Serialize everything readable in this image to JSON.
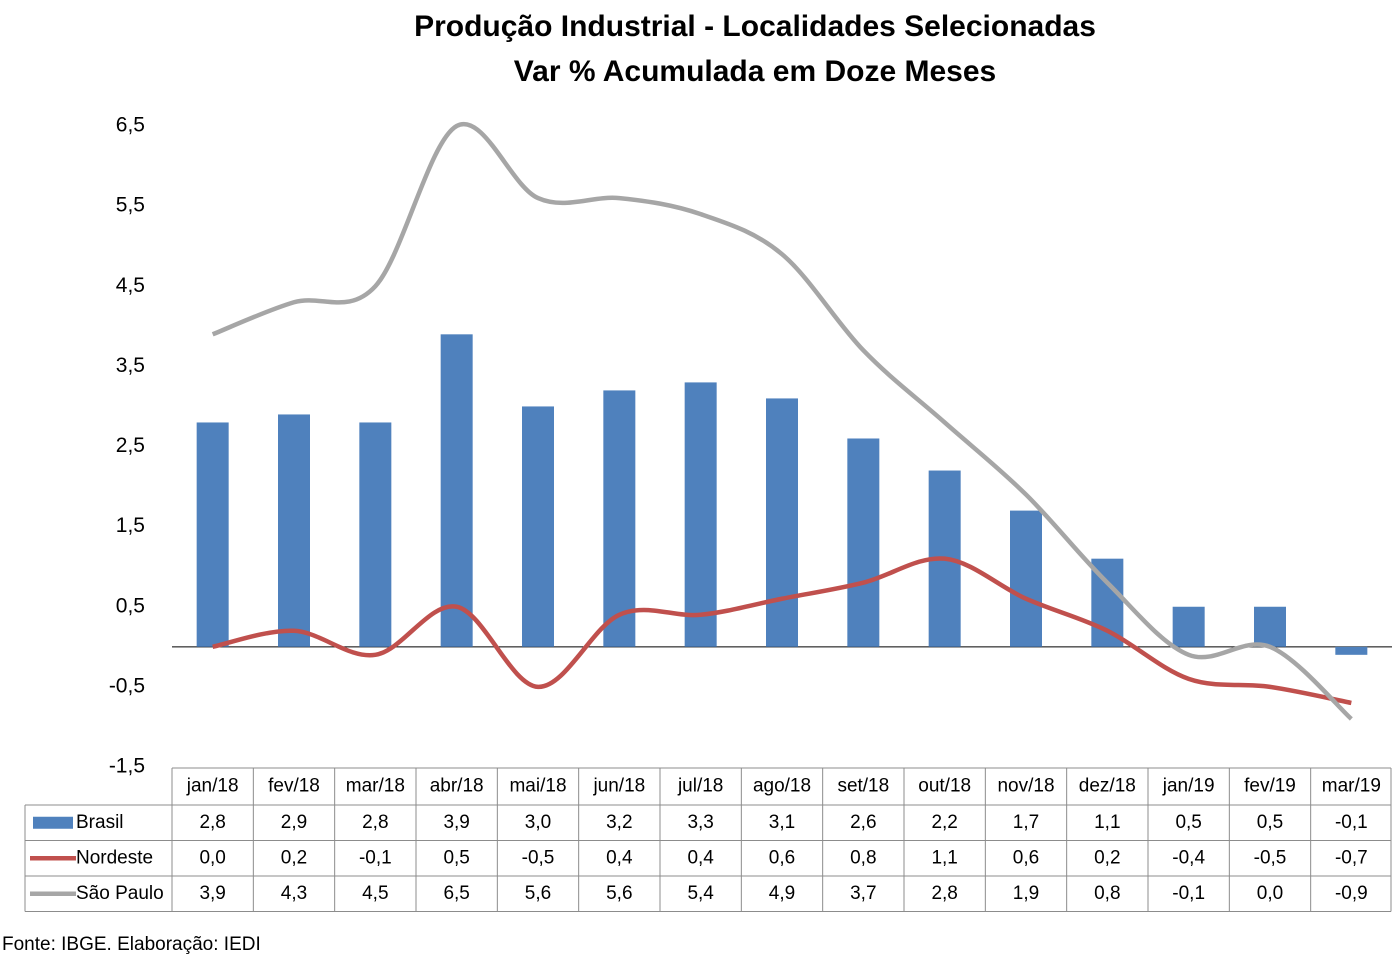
{
  "chart_data": {
    "type": "bar-line-table",
    "title": "Produção Industrial - Localidades Selecionadas",
    "subtitle": "Var % Acumulada em Doze Meses",
    "source": "Fonte: IBGE. Elaboração: IEDI",
    "categories": [
      "jan/18",
      "fev/18",
      "mar/18",
      "abr/18",
      "mai/18",
      "jun/18",
      "jul/18",
      "ago/18",
      "set/18",
      "out/18",
      "nov/18",
      "dez/18",
      "jan/19",
      "fev/19",
      "mar/19"
    ],
    "ylim": [
      -1.5,
      6.5
    ],
    "yticks": [
      {
        "value": 6.5,
        "label": "6,5"
      },
      {
        "value": 5.5,
        "label": "5,5"
      },
      {
        "value": 4.5,
        "label": "4,5"
      },
      {
        "value": 3.5,
        "label": "3,5"
      },
      {
        "value": 2.5,
        "label": "2,5"
      },
      {
        "value": 1.5,
        "label": "1,5"
      },
      {
        "value": 0.5,
        "label": "0,5"
      },
      {
        "value": -0.5,
        "label": "-0,5"
      },
      {
        "value": -1.5,
        "label": "-1,5"
      }
    ],
    "grid": false,
    "series": [
      {
        "name": "Brasil",
        "type": "bar",
        "color": "#4f81bd",
        "values": [
          2.8,
          2.9,
          2.8,
          3.9,
          3.0,
          3.2,
          3.3,
          3.1,
          2.6,
          2.2,
          1.7,
          1.1,
          0.5,
          0.5,
          -0.1
        ],
        "value_labels": [
          "2,8",
          "2,9",
          "2,8",
          "3,9",
          "3,0",
          "3,2",
          "3,3",
          "3,1",
          "2,6",
          "2,2",
          "1,7",
          "1,1",
          "0,5",
          "0,5",
          "-0,1"
        ]
      },
      {
        "name": "Nordeste",
        "type": "line",
        "color": "#c0504d",
        "values": [
          0.0,
          0.2,
          -0.1,
          0.5,
          -0.5,
          0.4,
          0.4,
          0.6,
          0.8,
          1.1,
          0.6,
          0.2,
          -0.4,
          -0.5,
          -0.7
        ],
        "value_labels": [
          "0,0",
          "0,2",
          "-0,1",
          "0,5",
          "-0,5",
          "0,4",
          "0,4",
          "0,6",
          "0,8",
          "1,1",
          "0,6",
          "0,2",
          "-0,4",
          "-0,5",
          "-0,7"
        ]
      },
      {
        "name": "São Paulo",
        "type": "line",
        "color": "#a6a6a6",
        "values": [
          3.9,
          4.3,
          4.5,
          6.5,
          5.6,
          5.6,
          5.4,
          4.9,
          3.7,
          2.8,
          1.9,
          0.8,
          -0.1,
          0.0,
          -0.9
        ],
        "value_labels": [
          "3,9",
          "4,3",
          "4,5",
          "6,5",
          "5,6",
          "5,6",
          "5,4",
          "4,9",
          "3,7",
          "2,8",
          "1,9",
          "0,8",
          "-0,1",
          "0,0",
          "-0,9"
        ]
      }
    ]
  }
}
